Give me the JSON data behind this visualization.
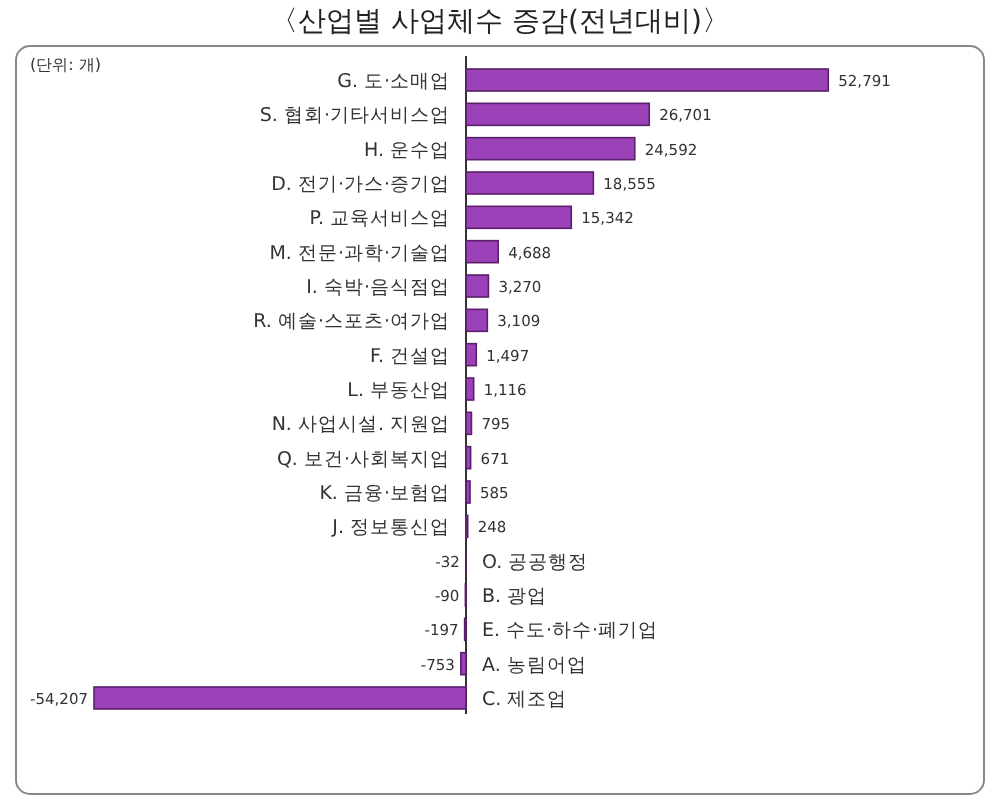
{
  "chart_data": {
    "type": "bar",
    "orientation": "horizontal",
    "title": "〈산업별 사업체수 증감(전년대비)〉",
    "annotations": [
      "(단위: 개)"
    ],
    "categories": [
      "G. 도·소매업",
      "S. 협회·기타서비스업",
      "H. 운수업",
      "D. 전기·가스·증기업",
      "P. 교육서비스업",
      "M. 전문·과학·기술업",
      "I. 숙박·음식점업",
      "R. 예술·스포츠·여가업",
      "F. 건설업",
      "L. 부동산업",
      "N. 사업시설. 지원업",
      "Q. 보건·사회복지업",
      "K. 금융·보험업",
      "J. 정보통신업",
      "O. 공공행정",
      "B. 광업",
      "E. 수도·하수·폐기업",
      "A. 농림어업",
      "C. 제조업"
    ],
    "values": [
      52791,
      26701,
      24592,
      18555,
      15342,
      4688,
      3270,
      3109,
      1497,
      1116,
      795,
      671,
      585,
      248,
      -32,
      -90,
      -197,
      -753,
      -54207
    ],
    "value_labels": [
      "52,791",
      "26,701",
      "24,592",
      "18,555",
      "15,342",
      "4,688",
      "3,270",
      "3,109",
      "1,497",
      "1,116",
      "795",
      "671",
      "585",
      "248",
      "-32",
      "-90",
      "-197",
      "-753",
      "-54,207"
    ],
    "color": "#9c42b8"
  }
}
